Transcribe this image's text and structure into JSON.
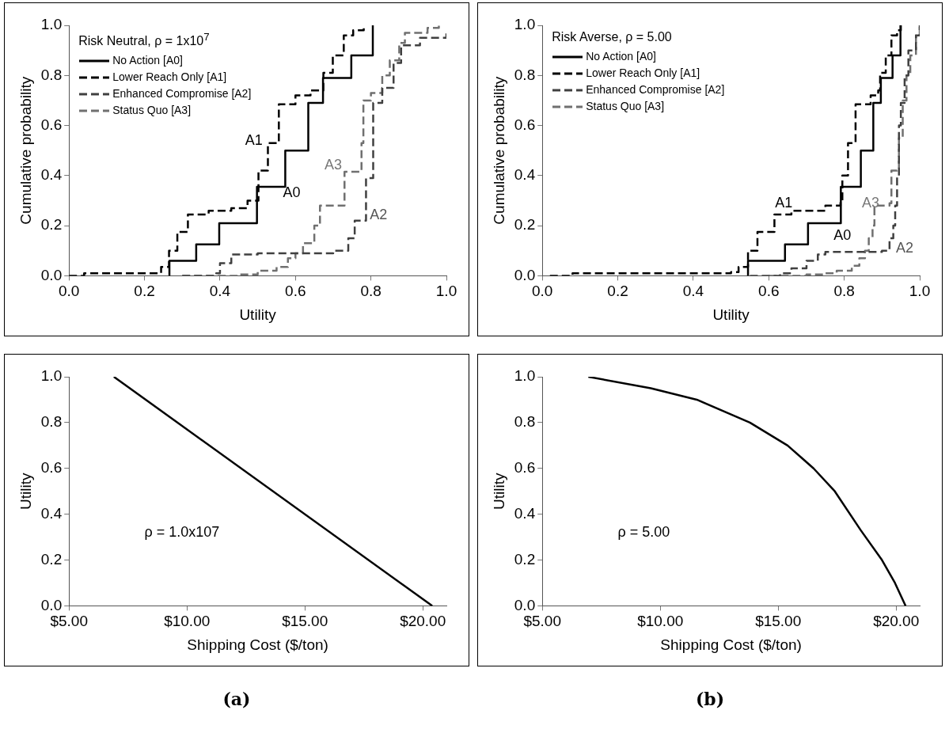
{
  "chart_data": [
    {
      "type": "step",
      "xlabel": "Utility",
      "ylabel": "Cumulative probability",
      "legend_title": "Risk Neutral, ρ = 1x10$^{7}$",
      "legend": "top left",
      "grid": false,
      "marker": "none",
      "xlim": [
        0,
        1
      ],
      "xticks": [
        {
          "value": 0,
          "label": "0.0"
        },
        {
          "value": 0.2,
          "label": "0.2"
        },
        {
          "value": 0.4,
          "label": "0.4"
        },
        {
          "value": 0.6,
          "label": "0.6"
        },
        {
          "value": 0.8,
          "label": "0.8"
        },
        {
          "value": 1,
          "label": "1.0"
        }
      ],
      "ylim": [
        0,
        1
      ],
      "yticks": [
        {
          "value": 0,
          "label": "0.0"
        },
        {
          "value": 0.2,
          "label": "0.2"
        },
        {
          "value": 0.4,
          "label": "0.4"
        },
        {
          "value": 0.6,
          "label": "0.6"
        },
        {
          "value": 0.8,
          "label": "0.8"
        },
        {
          "value": 1,
          "label": "1.0"
        }
      ],
      "series": [
        {
          "name": "No Action [A0]",
          "color": "#000000",
          "line_style": "solid",
          "x": [
            0.266,
            0.266,
            0.337,
            0.398,
            0.498,
            0.573,
            0.634,
            0.673,
            0.748,
            0.805
          ],
          "values": [
            0,
            0.06,
            0.125,
            0.21,
            0.355,
            0.5,
            0.69,
            0.79,
            0.88,
            1.0
          ]
        },
        {
          "name": "Lower Reach Only [A1]",
          "color": "#000000",
          "line_style": "dashed",
          "x": [
            0,
            0.04,
            0.244,
            0.265,
            0.287,
            0.315,
            0.37,
            0.43,
            0.473,
            0.502,
            0.527,
            0.556,
            0.6,
            0.64,
            0.674,
            0.699,
            0.728,
            0.753,
            0.781
          ],
          "values": [
            0,
            0.01,
            0.035,
            0.1,
            0.175,
            0.245,
            0.26,
            0.27,
            0.3,
            0.42,
            0.53,
            0.685,
            0.72,
            0.74,
            0.81,
            0.88,
            0.96,
            0.98,
            1.0
          ]
        },
        {
          "name": "Enhanced Compromise [A2]",
          "color": "#404040",
          "line_style": "dashed",
          "x": [
            0.3,
            0.39,
            0.4,
            0.43,
            0.5,
            0.6,
            0.7,
            0.74,
            0.757,
            0.787,
            0.787,
            0.806,
            0.83,
            0.86,
            0.88,
            0.93,
            1.0
          ],
          "values": [
            0,
            0.01,
            0.05,
            0.085,
            0.09,
            0.09,
            0.1,
            0.15,
            0.22,
            0.28,
            0.39,
            0.69,
            0.75,
            0.85,
            0.92,
            0.95,
            0.98
          ]
        },
        {
          "name": "Status Quo [A3]",
          "color": "#707070",
          "line_style": "dashed",
          "x": [
            0.3,
            0.45,
            0.5,
            0.55,
            0.58,
            0.6,
            0.62,
            0.65,
            0.665,
            0.73,
            0.775,
            0.78,
            0.8,
            0.83,
            0.85,
            0.875,
            0.89,
            0.95,
            0.98
          ],
          "values": [
            0,
            0.005,
            0.02,
            0.035,
            0.07,
            0.09,
            0.13,
            0.2,
            0.28,
            0.415,
            0.53,
            0.7,
            0.73,
            0.8,
            0.86,
            0.93,
            0.97,
            0.99,
            1.0
          ]
        }
      ],
      "annotations": [
        "A1",
        "A0",
        "A3",
        "A2"
      ]
    },
    {
      "type": "step",
      "xlabel": "Utility",
      "ylabel": "Cumulative probability",
      "legend_title": "Risk Averse, ρ = 5.00",
      "legend": "top left",
      "grid": false,
      "marker": "none",
      "xlim": [
        0,
        1
      ],
      "xticks": [
        {
          "value": 0,
          "label": "0.0"
        },
        {
          "value": 0.2,
          "label": "0.2"
        },
        {
          "value": 0.4,
          "label": "0.4"
        },
        {
          "value": 0.6,
          "label": "0.6"
        },
        {
          "value": 0.8,
          "label": "0.8"
        },
        {
          "value": 1,
          "label": "1.0"
        }
      ],
      "ylim": [
        0,
        1
      ],
      "yticks": [
        {
          "value": 0,
          "label": "0.0"
        },
        {
          "value": 0.2,
          "label": "0.2"
        },
        {
          "value": 0.4,
          "label": "0.4"
        },
        {
          "value": 0.6,
          "label": "0.6"
        },
        {
          "value": 0.8,
          "label": "0.8"
        },
        {
          "value": 1,
          "label": "1.0"
        }
      ],
      "series": [
        {
          "name": "No Action [A0]",
          "color": "#000000",
          "line_style": "solid",
          "x": [
            0.545,
            0.545,
            0.643,
            0.704,
            0.791,
            0.844,
            0.877,
            0.897,
            0.928,
            0.949
          ],
          "values": [
            0,
            0.06,
            0.125,
            0.21,
            0.355,
            0.5,
            0.69,
            0.79,
            0.88,
            1.0
          ]
        },
        {
          "name": "Lower Reach Only [A1]",
          "color": "#000000",
          "line_style": "dashed",
          "x": [
            0.02,
            0.08,
            0.5,
            0.52,
            0.545,
            0.57,
            0.615,
            0.66,
            0.75,
            0.79,
            0.795,
            0.81,
            0.83,
            0.87,
            0.89,
            0.895,
            0.91,
            0.925,
            0.94,
            0.95
          ],
          "values": [
            0,
            0.01,
            0.015,
            0.035,
            0.1,
            0.175,
            0.245,
            0.26,
            0.28,
            0.3,
            0.4,
            0.53,
            0.685,
            0.72,
            0.74,
            0.81,
            0.88,
            0.96,
            0.98,
            1.0
          ]
        },
        {
          "name": "Enhanced Compromise [A2]",
          "color": "#404040",
          "line_style": "dashed",
          "x": [
            0.55,
            0.63,
            0.66,
            0.7,
            0.73,
            0.75,
            0.85,
            0.9,
            0.92,
            0.93,
            0.935,
            0.94,
            0.945,
            0.95,
            0.96,
            0.97,
            0.99,
            1.0
          ],
          "values": [
            0,
            0.01,
            0.03,
            0.06,
            0.085,
            0.095,
            0.095,
            0.1,
            0.15,
            0.2,
            0.28,
            0.4,
            0.6,
            0.69,
            0.8,
            0.9,
            0.96,
            1.0
          ]
        },
        {
          "name": "Status Quo [A3]",
          "color": "#707070",
          "line_style": "dashed",
          "x": [
            0.6,
            0.7,
            0.75,
            0.78,
            0.82,
            0.84,
            0.855,
            0.865,
            0.875,
            0.88,
            0.92,
            0.925,
            0.94,
            0.945,
            0.955,
            0.965,
            0.975,
            0.99,
            1.0
          ],
          "values": [
            0,
            0.005,
            0.01,
            0.02,
            0.04,
            0.07,
            0.1,
            0.15,
            0.2,
            0.28,
            0.29,
            0.42,
            0.43,
            0.55,
            0.7,
            0.8,
            0.88,
            0.96,
            1.0
          ]
        }
      ],
      "annotations": [
        "A1",
        "A0",
        "A3",
        "A2"
      ]
    },
    {
      "type": "line",
      "xlabel": "Shipping Cost ($/ton)",
      "ylabel": "Utility",
      "grid": false,
      "marker": "none",
      "xlim": [
        5,
        21
      ],
      "xticks": [
        {
          "value": 5,
          "label": "$5.00"
        },
        {
          "value": 10,
          "label": "$10.00"
        },
        {
          "value": 15,
          "label": "$15.00"
        },
        {
          "value": 20,
          "label": "$20.00"
        }
      ],
      "ylim": [
        0,
        1
      ],
      "yticks": [
        {
          "value": 0,
          "label": "0.0"
        },
        {
          "value": 0.2,
          "label": "0.2"
        },
        {
          "value": 0.4,
          "label": "0.4"
        },
        {
          "value": 0.6,
          "label": "0.6"
        },
        {
          "value": 0.8,
          "label": "0.8"
        },
        {
          "value": 1,
          "label": "1.0"
        }
      ],
      "series": [
        {
          "color": "#000000",
          "x": [
            6.9,
            20.4
          ],
          "values": [
            1,
            0
          ]
        }
      ],
      "annotations": [
        "ρ = 1.0x107",
        "(a)"
      ]
    },
    {
      "type": "line",
      "xlabel": "Shipping Cost ($/ton)",
      "ylabel": "Utility",
      "grid": false,
      "marker": "none",
      "xlim": [
        5,
        21
      ],
      "xticks": [
        {
          "value": 5,
          "label": "$5.00"
        },
        {
          "value": 10,
          "label": "$10.00"
        },
        {
          "value": 15,
          "label": "$15.00"
        },
        {
          "value": 20,
          "label": "$20.00"
        }
      ],
      "ylim": [
        0,
        1
      ],
      "yticks": [
        {
          "value": 0,
          "label": "0.0"
        },
        {
          "value": 0.2,
          "label": "0.2"
        },
        {
          "value": 0.4,
          "label": "0.4"
        },
        {
          "value": 0.6,
          "label": "0.6"
        },
        {
          "value": 0.8,
          "label": "0.8"
        },
        {
          "value": 1,
          "label": "1.0"
        }
      ],
      "series": [
        {
          "color": "#000000",
          "x": [
            6.95,
            9.6,
            11.55,
            13.8,
            15.4,
            16.5,
            17.4,
            18.5,
            19.4,
            19.95,
            20.4
          ],
          "values": [
            1,
            0.95,
            0.9,
            0.8,
            0.7,
            0.6,
            0.5,
            0.33,
            0.2,
            0.1,
            0
          ]
        }
      ],
      "annotations": [
        "ρ = 5.00",
        "(b)"
      ]
    }
  ]
}
